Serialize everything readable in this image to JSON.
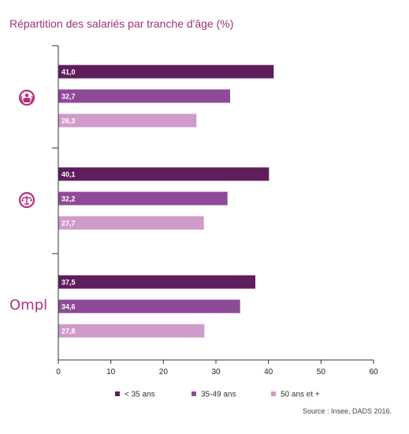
{
  "title": "Répartition des salariés par tranche d'âge (%)",
  "source": "Source : Insee, DADS 2016.",
  "colors": {
    "title": "#a0307a",
    "series": [
      "#5e1d5c",
      "#8e4a98",
      "#cf9bc9"
    ],
    "group_icon": "#b2317f",
    "axis": "#333333"
  },
  "chart_data": {
    "type": "bar",
    "orientation": "horizontal",
    "title": "Répartition des salariés par tranche d'âge (%)",
    "xlim": [
      0,
      60
    ],
    "xticks": [
      "0",
      "10",
      "20",
      "30",
      "40",
      "50",
      "60"
    ],
    "groups": [
      {
        "icon": "care-person-icon"
      },
      {
        "icon": "scales-icon"
      },
      {
        "label": "Ompl",
        "icon": "ompl-logo"
      }
    ],
    "series": [
      {
        "name": "< 35 ans",
        "values": [
          41.0,
          40.1,
          37.5
        ],
        "labels": [
          "41,0",
          "40,1",
          "37,5"
        ]
      },
      {
        "name": "35-49 ans",
        "values": [
          32.7,
          32.2,
          34.6
        ],
        "labels": [
          "32,7",
          "32,2",
          "34,6"
        ]
      },
      {
        "name": "50 ans et +",
        "values": [
          26.3,
          27.7,
          27.8
        ],
        "labels": [
          "26,3",
          "27,7",
          "27,8"
        ]
      }
    ],
    "legend_position": "bottom",
    "grid": false
  }
}
